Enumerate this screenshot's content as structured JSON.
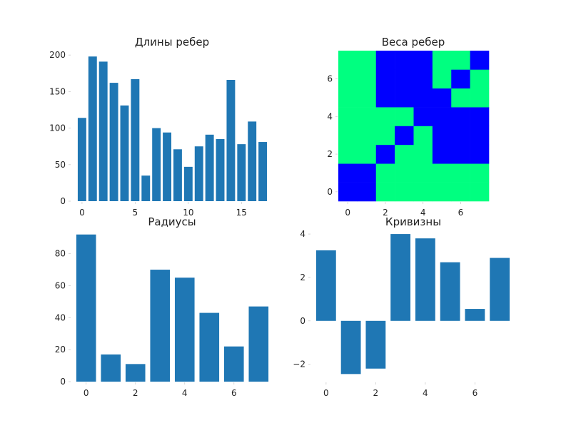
{
  "chart_data": [
    {
      "type": "bar",
      "title": "Длины ребер",
      "x": [
        0,
        1,
        2,
        3,
        4,
        5,
        6,
        7,
        8,
        9,
        10,
        11,
        12,
        13,
        14,
        15,
        16,
        17
      ],
      "values": [
        114,
        198,
        191,
        162,
        131,
        167,
        35,
        100,
        94,
        71,
        47,
        75,
        91,
        85,
        166,
        78,
        109,
        81
      ],
      "xticks": [
        0,
        5,
        10,
        15
      ],
      "yticks": [
        0,
        50,
        100,
        150,
        200
      ],
      "xlim": [
        -1,
        18
      ],
      "ylim": [
        0,
        207
      ],
      "color": "#1f77b4"
    },
    {
      "type": "heatmap",
      "title": "Веса ребер",
      "xticks": [
        0,
        2,
        4,
        6
      ],
      "yticks": [
        0,
        2,
        4,
        6
      ],
      "xlim": [
        -0.5,
        7.5
      ],
      "ylim": [
        -0.5,
        7.5
      ],
      "levels": {
        "0": "#00ff80",
        "1": "#0000ff"
      },
      "matrix_rows_from_bottom": [
        [
          1,
          1,
          0,
          0,
          0,
          0,
          0,
          0
        ],
        [
          1,
          1,
          0,
          0,
          0,
          0,
          0,
          0
        ],
        [
          0,
          0,
          1,
          0,
          0,
          1,
          1,
          1
        ],
        [
          0,
          0,
          0,
          1,
          0,
          1,
          1,
          1
        ],
        [
          0,
          0,
          0,
          0,
          1,
          1,
          1,
          1
        ],
        [
          0,
          0,
          1,
          1,
          1,
          1,
          0,
          0
        ],
        [
          0,
          0,
          1,
          1,
          1,
          0,
          1,
          0
        ],
        [
          0,
          0,
          1,
          1,
          1,
          0,
          0,
          1
        ]
      ]
    },
    {
      "type": "bar",
      "title": "Радиусы",
      "x": [
        0,
        1,
        2,
        3,
        4,
        5,
        6,
        7
      ],
      "values": [
        92,
        17,
        11,
        70,
        65,
        43,
        22,
        47
      ],
      "xticks": [
        0,
        2,
        4,
        6
      ],
      "yticks": [
        0,
        20,
        40,
        60,
        80
      ],
      "xlim": [
        -0.6,
        7.6
      ],
      "ylim": [
        0,
        95
      ],
      "color": "#1f77b4"
    },
    {
      "type": "bar",
      "title": "Кривизны",
      "x": [
        0,
        1,
        2,
        3,
        4,
        5,
        6,
        7
      ],
      "values": [
        3.25,
        -2.45,
        -2.2,
        4.0,
        3.8,
        2.7,
        0.55,
        2.9
      ],
      "xticks": [
        0,
        2,
        4,
        6
      ],
      "yticks": [
        -2,
        0,
        2,
        4
      ],
      "ytick_labels": [
        "−2",
        "0",
        "2",
        "4"
      ],
      "xlim": [
        -0.6,
        7.6
      ],
      "ylim": [
        -2.8,
        4.2
      ],
      "color": "#1f77b4"
    }
  ]
}
